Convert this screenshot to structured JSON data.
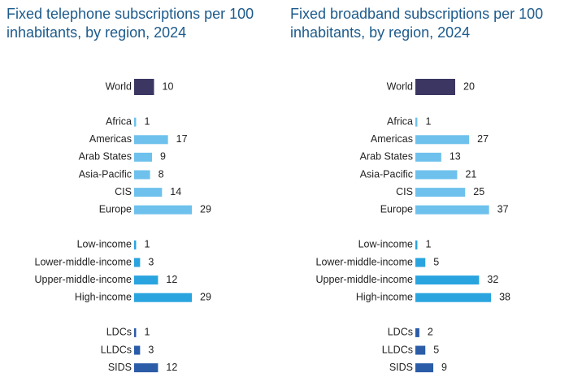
{
  "chart_data": [
    {
      "type": "bar",
      "orientation": "horizontal",
      "title": "Fixed telephone subscriptions per 100 inhabitants, by region, 2024",
      "groups": [
        {
          "categories": [
            "World"
          ],
          "values": [
            10
          ],
          "color": "#3b3762"
        },
        {
          "categories": [
            "Africa",
            "Americas",
            "Arab States",
            "Asia-Pacific",
            "CIS",
            "Europe"
          ],
          "values": [
            1,
            17,
            9,
            8,
            14,
            29
          ],
          "color": "#6ec1ec"
        },
        {
          "categories": [
            "Low-income",
            "Lower-middle-income",
            "Upper-middle-income",
            "High-income"
          ],
          "values": [
            1,
            3,
            12,
            29
          ],
          "color": "#29a4df"
        },
        {
          "categories": [
            "LDCs",
            "LLDCs",
            "SIDS"
          ],
          "values": [
            1,
            3,
            12
          ],
          "color": "#2a5ca8"
        }
      ]
    },
    {
      "type": "bar",
      "orientation": "horizontal",
      "title": "Fixed broadband subscriptions per 100 inhabitants, by region, 2024",
      "groups": [
        {
          "categories": [
            "World"
          ],
          "values": [
            20
          ],
          "color": "#3b3762"
        },
        {
          "categories": [
            "Africa",
            "Americas",
            "Arab States",
            "Asia-Pacific",
            "CIS",
            "Europe"
          ],
          "values": [
            1,
            27,
            13,
            21,
            25,
            37
          ],
          "color": "#6ec1ec"
        },
        {
          "categories": [
            "Low-income",
            "Lower-middle-income",
            "Upper-middle-income",
            "High-income"
          ],
          "values": [
            1,
            5,
            32,
            38
          ],
          "color": "#29a4df"
        },
        {
          "categories": [
            "LDCs",
            "LLDCs",
            "SIDS"
          ],
          "values": [
            2,
            5,
            9
          ],
          "color": "#2a5ca8"
        }
      ]
    }
  ]
}
